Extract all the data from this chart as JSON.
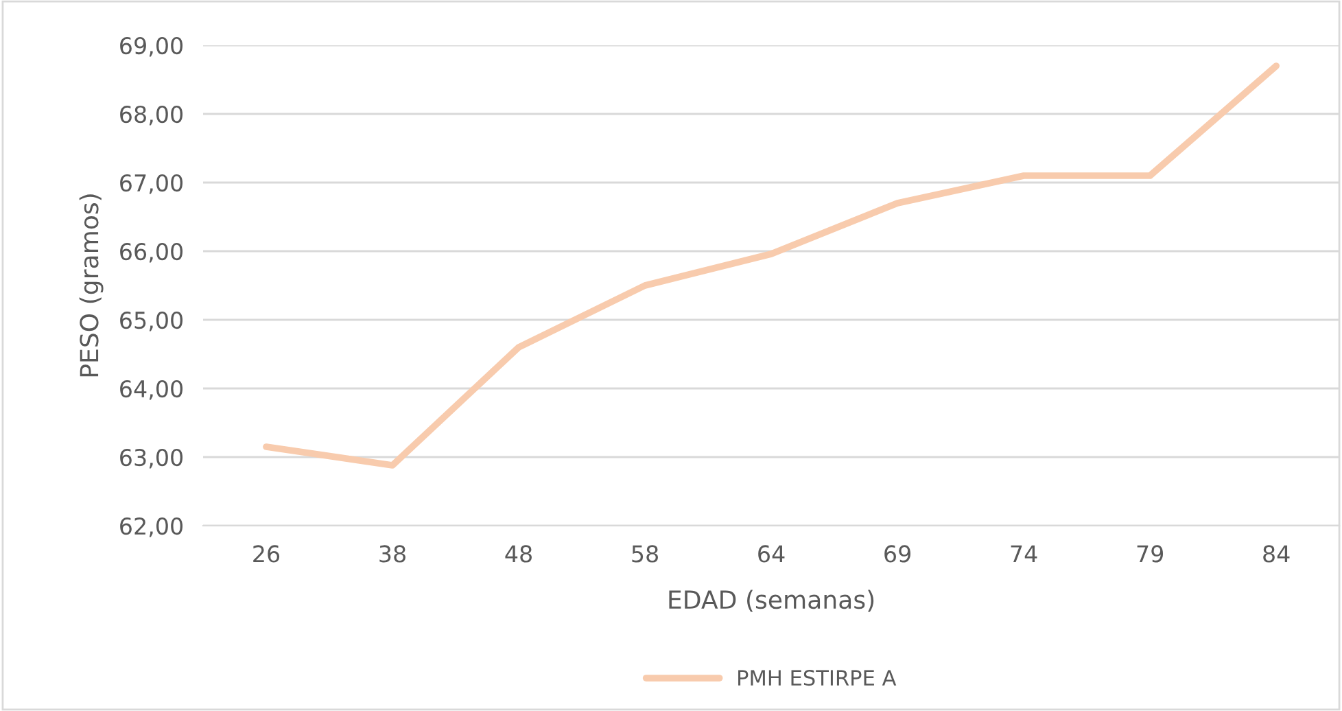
{
  "chart_data": {
    "type": "line",
    "xlabel": "EDAD (semanas)",
    "ylabel": "PESO (gramos)",
    "categories": [
      "26",
      "38",
      "48",
      "58",
      "64",
      "69",
      "74",
      "79",
      "84"
    ],
    "series": [
      {
        "name": "PMH ESTIRPE A",
        "color": "#f8cbad",
        "values": [
          63.15,
          62.88,
          64.6,
          65.5,
          65.96,
          66.7,
          67.1,
          67.1,
          68.7
        ]
      }
    ],
    "ylim": [
      62,
      69
    ],
    "yticks": [
      {
        "value": 62,
        "label": "62,00"
      },
      {
        "value": 63,
        "label": "63,00"
      },
      {
        "value": 64,
        "label": "64,00"
      },
      {
        "value": 65,
        "label": "65,00"
      },
      {
        "value": 66,
        "label": "66,00"
      },
      {
        "value": 67,
        "label": "67,00"
      },
      {
        "value": 68,
        "label": "68,00"
      },
      {
        "value": 69,
        "label": "69,00"
      }
    ],
    "grid": "y",
    "legend": "bottom",
    "marker": "none",
    "line_style": "solid"
  }
}
